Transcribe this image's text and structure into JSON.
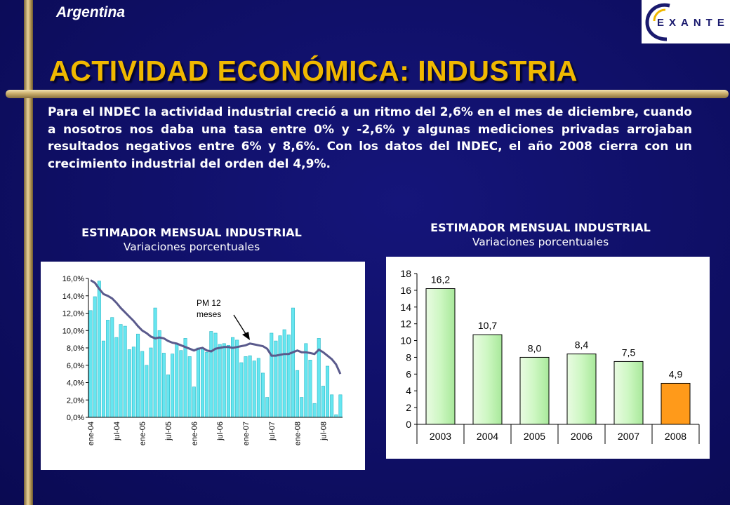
{
  "header": {
    "country": "Argentina",
    "logo_text": "EXANTE",
    "title": "ACTIVIDAD ECONÓMICA: INDUSTRIA"
  },
  "intro_text": "Para el INDEC la actividad industrial creció a un ritmo del 2,6% en el mes de diciembre, cuando a nosotros nos daba una tasa entre 0% y -2,6% y algunas mediciones privadas arrojaban resultados negativos entre 6% y 8,6%. Con los datos del INDEC, el año 2008 cierra con un crecimiento industrial del orden del 4,9%.",
  "colors": {
    "background": "#0f0f66",
    "title": "#f0b800",
    "bar_left": "#66e6f0",
    "line": "#5a5a8c",
    "bar_right": "#cdf7c2",
    "bar_highlight": "#ff9a1a"
  },
  "chart_data": [
    {
      "type": "bar",
      "title": "ESTIMADOR MENSUAL INDUSTRIAL",
      "subtitle": "Variaciones porcentuales",
      "annotation": "PM 12 meses",
      "y_ticks": [
        "0,0%",
        "2,0%",
        "4,0%",
        "6,0%",
        "8,0%",
        "10,0%",
        "12,0%",
        "14,0%",
        "16,0%"
      ],
      "x_ticks": [
        "ene-04",
        "jul-04",
        "ene-05",
        "jul-05",
        "ene-06",
        "jul-06",
        "ene-07",
        "jul-07",
        "ene-08",
        "jul-08"
      ],
      "ylim": [
        0,
        16
      ],
      "grid": false,
      "series": [
        {
          "kind": "bar",
          "values": [
            12.3,
            13.9,
            15.7,
            8.8,
            11.2,
            11.5,
            9.2,
            10.7,
            10.5,
            7.8,
            8.1,
            9.6,
            7.6,
            6.0,
            8.0,
            12.6,
            10.0,
            7.4,
            4.9,
            7.3,
            8.4,
            7.7,
            9.1,
            7.0,
            3.5,
            8.0,
            7.9,
            7.5,
            9.9,
            9.7,
            8.4,
            8.5,
            8.3,
            9.2,
            8.9,
            6.3,
            7.0,
            7.1,
            6.5,
            6.8,
            5.1,
            2.3,
            9.7,
            8.8,
            9.4,
            10.1,
            9.5,
            12.6,
            5.4,
            2.3,
            8.5,
            6.6,
            1.6,
            9.1,
            3.6,
            5.9,
            2.6,
            0.3,
            2.6
          ]
        },
        {
          "kind": "line",
          "values": [
            15.8,
            15.5,
            14.8,
            14.2,
            14.0,
            13.7,
            13.2,
            12.6,
            12.1,
            11.6,
            11.1,
            10.5,
            10.0,
            9.7,
            9.3,
            9.1,
            9.2,
            9.1,
            8.8,
            8.6,
            8.5,
            8.3,
            8.1,
            7.9,
            7.7,
            7.9,
            8.0,
            7.7,
            7.6,
            7.9,
            8.0,
            8.1,
            8.1,
            8.0,
            8.1,
            8.2,
            8.3,
            8.5,
            8.4,
            8.3,
            8.2,
            7.9,
            7.1,
            7.1,
            7.2,
            7.3,
            7.3,
            7.5,
            7.7,
            7.5,
            7.5,
            7.4,
            7.3,
            7.8,
            7.5,
            7.1,
            6.7,
            6.1,
            5.0
          ]
        }
      ]
    },
    {
      "type": "bar",
      "title": "ESTIMADOR MENSUAL INDUSTRIAL",
      "subtitle": "Variaciones porcentuales",
      "categories": [
        "2003",
        "2004",
        "2005",
        "2006",
        "2007",
        "2008"
      ],
      "values": [
        16.2,
        10.7,
        8.0,
        8.4,
        7.5,
        4.9
      ],
      "labels": [
        "16,2",
        "10,7",
        "8,0",
        "8,4",
        "7,5",
        "4,9"
      ],
      "y_ticks": [
        "0",
        "2",
        "4",
        "6",
        "8",
        "10",
        "12",
        "14",
        "16",
        "18"
      ],
      "ylim": [
        0,
        18
      ],
      "highlight_index": 5,
      "grid": false
    }
  ]
}
